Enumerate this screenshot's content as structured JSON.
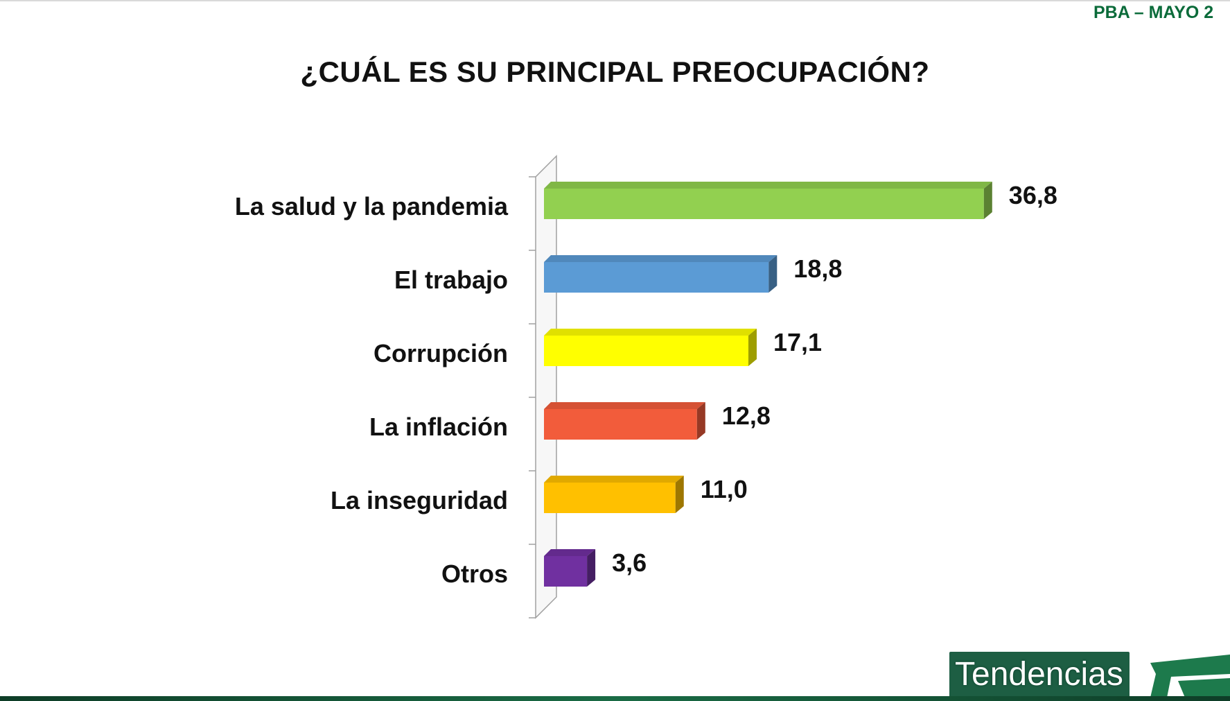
{
  "header": {
    "tag": "PBA – MAYO 2"
  },
  "chart_data": {
    "type": "bar",
    "orientation": "horizontal",
    "title": "¿CUÁL ES SU PRINCIPAL PREOCUPACIÓN?",
    "categories": [
      "La salud y la pandemia",
      "El trabajo",
      "Corrupción",
      "La inflación",
      "La inseguridad",
      "Otros"
    ],
    "values": [
      36.8,
      18.8,
      17.1,
      12.8,
      11.0,
      3.6
    ],
    "value_labels": [
      "36,8",
      "18,8",
      "17,1",
      "12,8",
      "11,0",
      "3,6"
    ],
    "colors": [
      "#92d050",
      "#5b9bd5",
      "#ffff00",
      "#f25c3b",
      "#ffc000",
      "#7030a0"
    ],
    "xlim": [
      0,
      40
    ],
    "grid": false,
    "legend": "none"
  },
  "brand": {
    "name": "Tendencias"
  }
}
